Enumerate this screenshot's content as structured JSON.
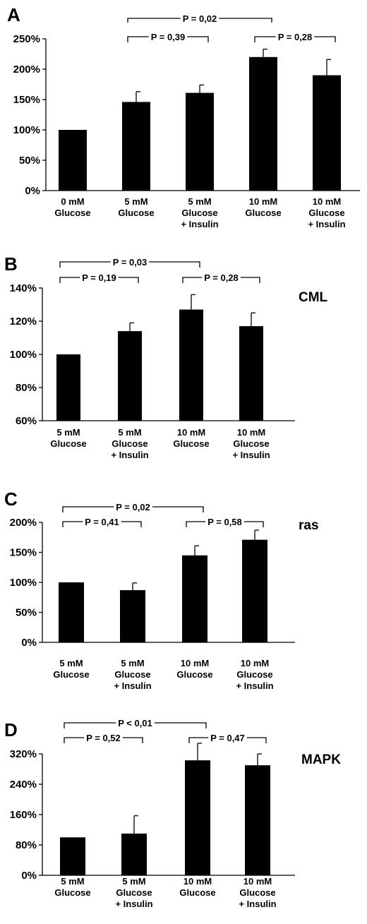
{
  "chart_data": [
    {
      "type": "bar",
      "panel": "A",
      "marker": "",
      "categories": [
        [
          "0 mM",
          "Glucose"
        ],
        [
          "5 mM",
          "Glucose"
        ],
        [
          "5 mM",
          "Glucose",
          "+ Insulin"
        ],
        [
          "10 mM",
          "Glucose"
        ],
        [
          "10 mM",
          "Glucose",
          "+ Insulin"
        ]
      ],
      "values": [
        100,
        146,
        161,
        220,
        190
      ],
      "errors": [
        0,
        17,
        13,
        13,
        26
      ],
      "ylim": [
        0,
        250
      ],
      "yticks": [
        0,
        50,
        100,
        150,
        200,
        250
      ],
      "tick_suffix": "%",
      "comparisons": [
        {
          "label": "P = 0,02",
          "from": 1,
          "to": 3
        },
        {
          "label": "P = 0,39",
          "from": 1,
          "to": 2
        },
        {
          "label": "P = 0,28",
          "from": 3,
          "to": 4
        }
      ]
    },
    {
      "type": "bar",
      "panel": "B",
      "marker": "CML",
      "categories": [
        [
          "5 mM",
          "Glucose"
        ],
        [
          "5 mM",
          "Glucose",
          "+ Insulin"
        ],
        [
          "10 mM",
          "Glucose"
        ],
        [
          "10 mM",
          "Glucose",
          "+ Insulin"
        ]
      ],
      "values": [
        100,
        114,
        127,
        117
      ],
      "errors": [
        0,
        5,
        9,
        8
      ],
      "ylim": [
        60,
        140
      ],
      "yticks": [
        60,
        80,
        100,
        120,
        140
      ],
      "tick_suffix": "%",
      "comparisons": [
        {
          "label": "P = 0,03",
          "from": 0,
          "to": 2
        },
        {
          "label": "P = 0,19",
          "from": 0,
          "to": 1
        },
        {
          "label": "P = 0,28",
          "from": 2,
          "to": 3
        }
      ]
    },
    {
      "type": "bar",
      "panel": "C",
      "marker": "ras",
      "categories": [
        [
          "5 mM",
          "Glucose"
        ],
        [
          "5 mM",
          "Glucose",
          "+ Insulin"
        ],
        [
          "10 mM",
          "Glucose"
        ],
        [
          "10 mM",
          "Glucose",
          "+ Insulin"
        ]
      ],
      "values": [
        100,
        87,
        145,
        171
      ],
      "errors": [
        0,
        12,
        16,
        16
      ],
      "ylim": [
        0,
        200
      ],
      "yticks": [
        0,
        50,
        100,
        150,
        200
      ],
      "tick_suffix": "%",
      "comparisons": [
        {
          "label": "P = 0,02",
          "from": 0,
          "to": 2
        },
        {
          "label": "P = 0,41",
          "from": 0,
          "to": 1
        },
        {
          "label": "P = 0,58",
          "from": 2,
          "to": 3
        }
      ]
    },
    {
      "type": "bar",
      "panel": "D",
      "marker": "MAPK",
      "categories": [
        [
          "5 mM",
          "Glucose"
        ],
        [
          "5 mM",
          "Glucose",
          "+ Insulin"
        ],
        [
          "10 mM",
          "Glucose"
        ],
        [
          "10 mM",
          "Glucose",
          "+ Insulin"
        ]
      ],
      "values": [
        100,
        110,
        303,
        290
      ],
      "errors": [
        0,
        47,
        45,
        30
      ],
      "ylim": [
        0,
        320
      ],
      "yticks": [
        0,
        80,
        160,
        240,
        320
      ],
      "tick_suffix": "%",
      "comparisons": [
        {
          "label": "P < 0,01",
          "from": 0,
          "to": 2
        },
        {
          "label": "P = 0,52",
          "from": 0,
          "to": 1
        },
        {
          "label": "P = 0,47",
          "from": 2,
          "to": 3
        }
      ]
    }
  ]
}
